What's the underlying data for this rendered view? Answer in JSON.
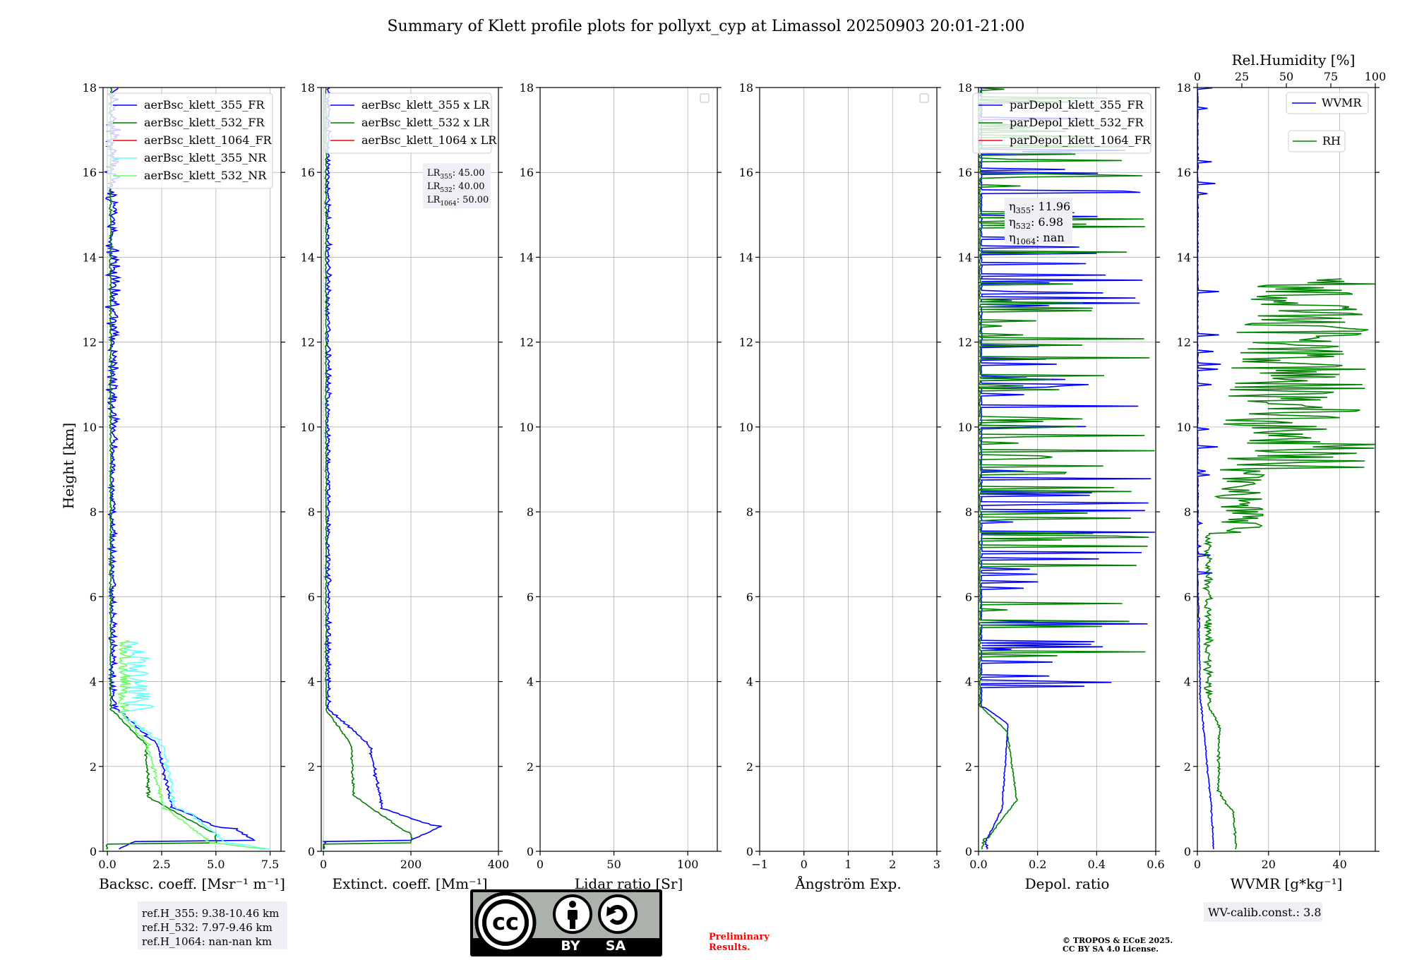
{
  "figure": {
    "title": "Summary of Klett profile plots for pollyxt_cyp at Limassol 20250903 20:01-21:00",
    "ylabel": "Height [km]",
    "yticks": [
      "0",
      "2",
      "4",
      "6",
      "8",
      "10",
      "12",
      "14",
      "16",
      "18"
    ],
    "ref_box": [
      "ref.H_355: 9.38-10.46 km",
      "ref.H_532: 7.97-9.46 km",
      "ref.H_1064: nan-nan km"
    ],
    "preliminary": [
      "Preliminary",
      "Results."
    ],
    "copyright": [
      "© TROPOS & ECoE 2025.",
      "CC BY SA 4.0 License."
    ],
    "cc_by": "BY",
    "cc_sa": "SA",
    "cc_logo": "cc"
  },
  "colors": {
    "c355": "#0000ff",
    "c532": "#008000",
    "c1064": "#ff0000",
    "c355nr": "#66ffff",
    "c532nr": "#66ff66",
    "grid": "#b0b0b0",
    "legend_border": "#cccccc",
    "preliminary": "#ff0000"
  },
  "chart_data": [
    {
      "id": "bsc",
      "type": "line",
      "xlabel": "Backsc. coeff. [Msr⁻¹ m⁻¹]",
      "xlim": [
        -0.2,
        8.0
      ],
      "ylim": [
        0,
        18
      ],
      "xticks": [
        {
          "v": 0,
          "t": "0.0"
        },
        {
          "v": 2.5,
          "t": "2.5"
        },
        {
          "v": 5,
          "t": "5.0"
        },
        {
          "v": 7.5,
          "t": "7.5"
        }
      ],
      "legend": [
        "aerBsc_klett_355_FR",
        "aerBsc_klett_532_FR",
        "aerBsc_klett_1064_FR",
        "aerBsc_klett_355_NR",
        "aerBsc_klett_532_NR"
      ],
      "series": [
        {
          "name": "aerBsc_klett_355_FR",
          "color": "c355",
          "gen": "bsc355"
        },
        {
          "name": "aerBsc_klett_532_FR",
          "color": "c532",
          "gen": "bsc532"
        },
        {
          "name": "aerBsc_klett_355_NR",
          "color": "c355nr",
          "gen": "bsc355nr"
        },
        {
          "name": "aerBsc_klett_532_NR",
          "color": "c532nr",
          "gen": "bsc532nr"
        }
      ]
    },
    {
      "id": "ext",
      "type": "line",
      "xlabel": "Extinct. coeff. [Mm⁻¹]",
      "xlim": [
        -5,
        400
      ],
      "ylim": [
        0,
        18
      ],
      "xticks": [
        {
          "v": 0,
          "t": "0"
        },
        {
          "v": 200,
          "t": "200"
        },
        {
          "v": 400,
          "t": "400"
        }
      ],
      "legend": [
        "aerBsc_klett_355 x LR",
        "aerBsc_klett_532 x LR",
        "aerBsc_klett_1064 x LR"
      ],
      "lr_box": [
        "LR",
        "355",
        ": 45.00",
        "LR",
        "532",
        ": 40.00",
        "LR",
        "1064",
        ": 50.00"
      ],
      "series": [
        {
          "name": "aerBsc_klett_355 x LR",
          "color": "c355",
          "gen": "ext355"
        },
        {
          "name": "aerBsc_klett_532 x LR",
          "color": "c532",
          "gen": "ext532"
        }
      ]
    },
    {
      "id": "lr",
      "type": "line",
      "xlabel": "Lidar ratio [Sr]",
      "xlim": [
        0,
        120
      ],
      "ylim": [
        0,
        18
      ],
      "xticks": [
        {
          "v": 0,
          "t": "0"
        },
        {
          "v": 50,
          "t": "50"
        },
        {
          "v": 100,
          "t": "100"
        }
      ],
      "series": []
    },
    {
      "id": "ang",
      "type": "line",
      "xlabel": "Ångström Exp.",
      "xlim": [
        -1,
        3
      ],
      "ylim": [
        0,
        18
      ],
      "xticks": [
        {
          "v": -1,
          "t": "−1"
        },
        {
          "v": 0,
          "t": "0"
        },
        {
          "v": 1,
          "t": "1"
        },
        {
          "v": 2,
          "t": "2"
        },
        {
          "v": 3,
          "t": "3"
        }
      ],
      "series": []
    },
    {
      "id": "dep",
      "type": "line",
      "xlabel": "Depol. ratio",
      "xlim": [
        0,
        0.6
      ],
      "ylim": [
        0,
        18
      ],
      "xticks": [
        {
          "v": 0,
          "t": "0.0"
        },
        {
          "v": 0.2,
          "t": "0.2"
        },
        {
          "v": 0.4,
          "t": "0.4"
        },
        {
          "v": 0.6,
          "t": "0.6"
        }
      ],
      "legend": [
        "parDepol_klett_355_FR",
        "parDepol_klett_532_FR",
        "parDepol_klett_1064_FR"
      ],
      "eta_box": [
        "η",
        "355",
        ": 11.96",
        "η",
        "532",
        ": 6.98",
        "η",
        "1064",
        ": nan"
      ],
      "series": [
        {
          "name": "parDepol_klett_355_FR",
          "color": "c355",
          "gen": "dep355"
        },
        {
          "name": "parDepol_klett_532_FR",
          "color": "c532",
          "gen": "dep532"
        }
      ]
    },
    {
      "id": "wv",
      "type": "line",
      "xlabel": "WVMR [g*kg⁻¹]",
      "xlim": [
        0,
        50
      ],
      "ylim": [
        0,
        18
      ],
      "xticks": [
        {
          "v": 0,
          "t": "0"
        },
        {
          "v": 20,
          "t": "20"
        },
        {
          "v": 40,
          "t": "40"
        }
      ],
      "top_label": "Rel.Humidity [%]",
      "top_xlim": [
        0,
        100
      ],
      "top_xticks": [
        {
          "v": 0,
          "t": "0"
        },
        {
          "v": 25,
          "t": "25"
        },
        {
          "v": 50,
          "t": "50"
        },
        {
          "v": 75,
          "t": "75"
        },
        {
          "v": 100,
          "t": "100"
        }
      ],
      "legend": [
        "WVMR",
        "RH"
      ],
      "calib": "WV-calib.const.: 3.8",
      "series": [
        {
          "name": "WVMR",
          "color": "c355",
          "gen": "wvmr"
        },
        {
          "name": "RH",
          "color": "c532",
          "gen": "rh"
        }
      ]
    }
  ]
}
